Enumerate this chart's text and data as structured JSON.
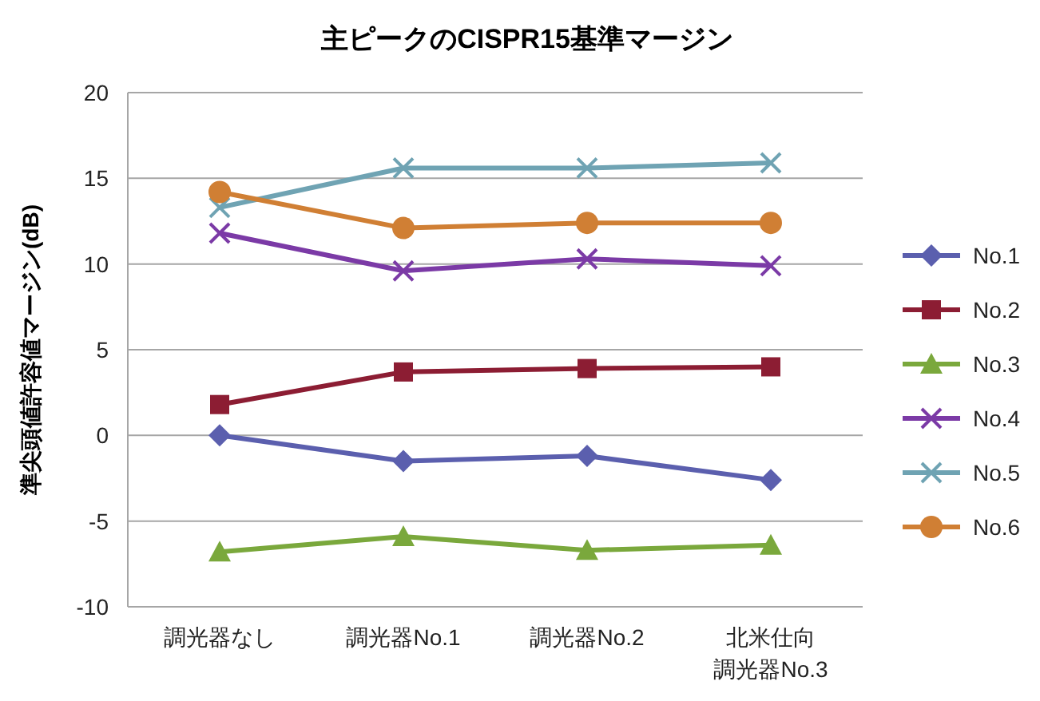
{
  "chart_data": {
    "type": "line",
    "title": "主ピークのCISPR15基準マージン",
    "ylabel": "準尖頭値許容値マージン(dB)",
    "categories": [
      "調光器なし",
      "調光器No.1",
      "調光器No.2",
      "北米仕向調光器No.3"
    ],
    "ylim": [
      -10,
      20
    ],
    "yticks": [
      -10,
      -5,
      0,
      5,
      10,
      15,
      20
    ],
    "grid": "y",
    "legend": "right",
    "series": [
      {
        "name": "No.1",
        "color": "#5b5fae",
        "marker": "diamond",
        "values": [
          0,
          -1.5,
          -1.2,
          -2.6
        ]
      },
      {
        "name": "No.2",
        "color": "#8c1d33",
        "marker": "square",
        "values": [
          1.8,
          3.7,
          3.9,
          4.0
        ]
      },
      {
        "name": "No.3",
        "color": "#7aa83c",
        "marker": "triangle",
        "values": [
          -6.8,
          -5.9,
          -6.7,
          -6.4
        ]
      },
      {
        "name": "No.4",
        "color": "#7b3aa6",
        "marker": "cross",
        "values": [
          11.8,
          9.6,
          10.3,
          9.9
        ]
      },
      {
        "name": "No.5",
        "color": "#6fa3b3",
        "marker": "cross",
        "values": [
          13.3,
          15.6,
          15.6,
          15.9
        ]
      },
      {
        "name": "No.6",
        "color": "#d07f34",
        "marker": "circle",
        "values": [
          14.2,
          12.1,
          12.4,
          12.4
        ]
      }
    ]
  }
}
